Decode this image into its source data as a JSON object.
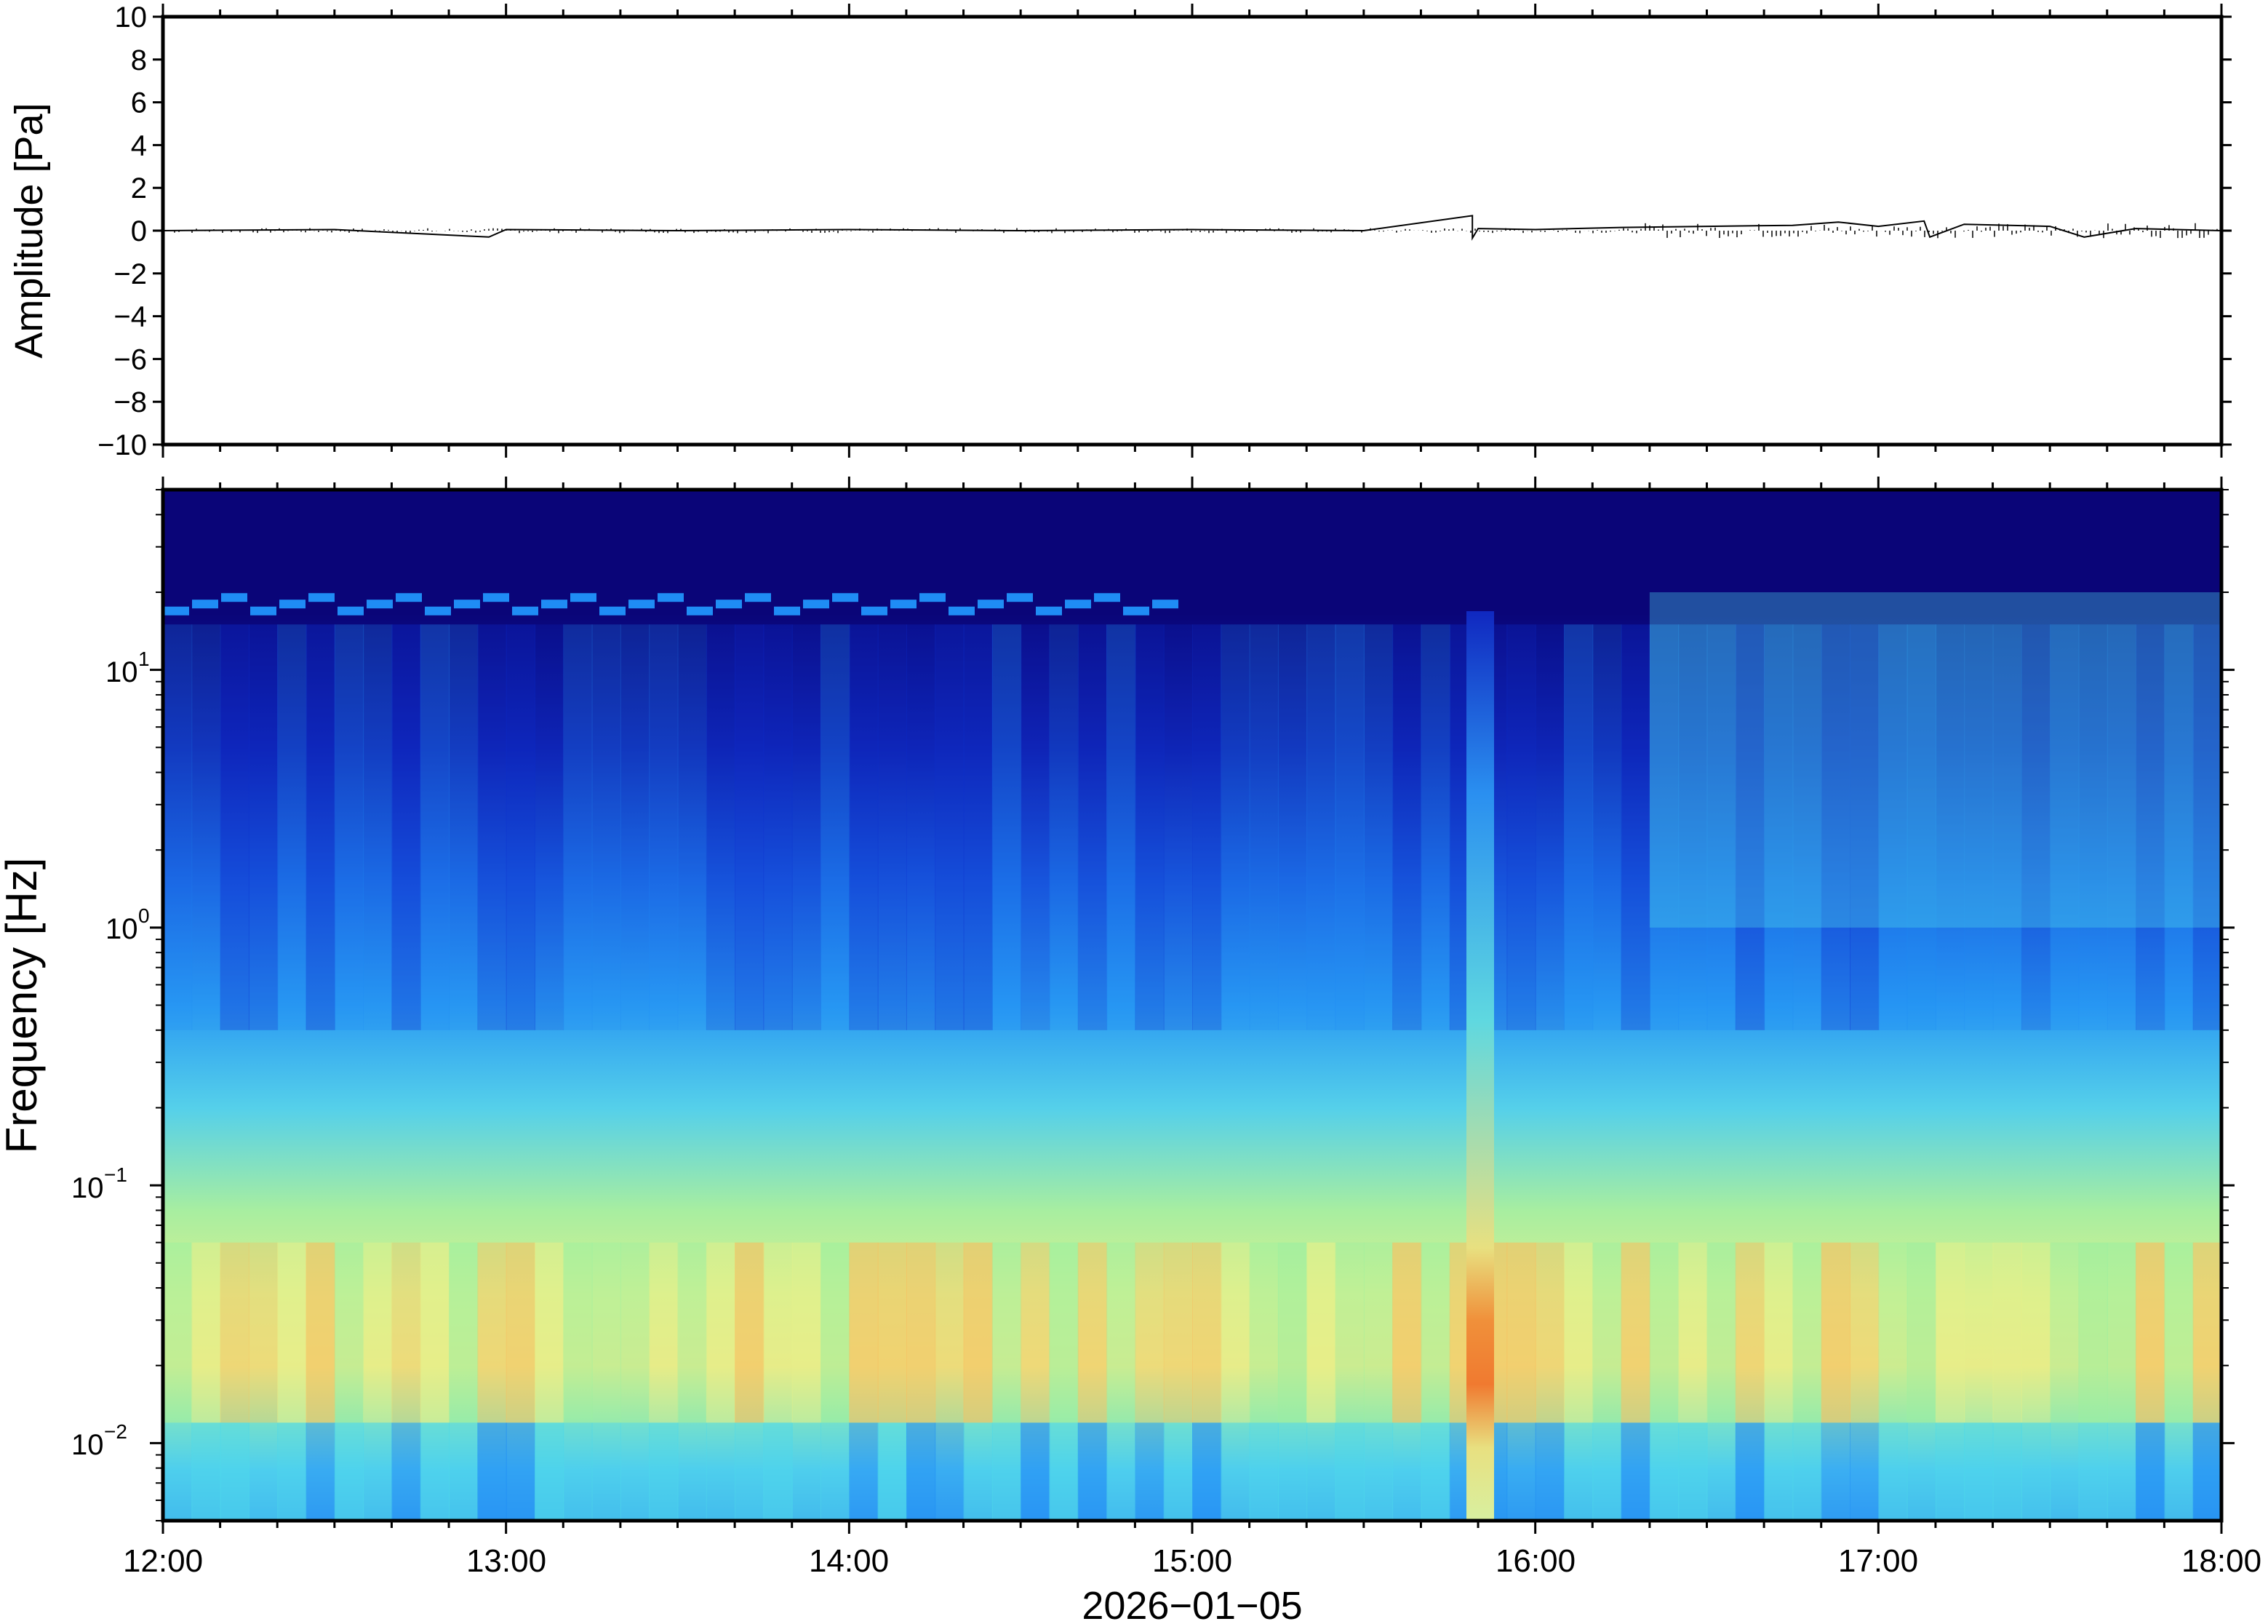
{
  "chart_data": [
    {
      "type": "line",
      "title": "",
      "ylabel": "Amplitude [Pa]",
      "xlabel": "",
      "ylim": [
        -10,
        10
      ],
      "yticks": [
        10,
        8,
        6,
        4,
        2,
        0,
        -2,
        -4,
        -6,
        -8,
        -10
      ],
      "ytick_labels": [
        "10",
        "8",
        "6",
        "4",
        "2",
        "0",
        "−2",
        "−4",
        "−6",
        "−8",
        "−10"
      ],
      "xlim": [
        "12:00",
        "18:00"
      ],
      "series": [
        {
          "x": [
            "12:00",
            "12:30",
            "12:57",
            "13:00",
            "13:30",
            "14:00",
            "14:30",
            "15:00",
            "15:30",
            "15:49",
            "15:49",
            "15:50",
            "16:00",
            "16:15",
            "16:30",
            "16:45",
            "16:53",
            "17:00",
            "17:08",
            "17:09",
            "17:15",
            "17:30",
            "17:36",
            "17:45",
            "18:00"
          ],
          "values": [
            0,
            0.05,
            -0.3,
            0.05,
            0,
            0.05,
            0,
            0.05,
            0,
            0.7,
            -0.35,
            0.1,
            0.05,
            0.15,
            0.2,
            0.25,
            0.4,
            0.2,
            0.45,
            -0.3,
            0.3,
            0.2,
            -0.3,
            0.1,
            0
          ]
        }
      ]
    },
    {
      "type": "heatmap",
      "title": "",
      "ylabel": "Frequency [Hz]",
      "xlabel": "2026−01−05",
      "yscale": "log",
      "ylim": [
        0.005,
        50
      ],
      "ytick_labels": [
        {
          "base": "10",
          "exp": "1",
          "value": 10
        },
        {
          "base": "10",
          "exp": "0",
          "value": 1
        },
        {
          "base": "10",
          "exp": "−1",
          "value": 0.1
        },
        {
          "base": "10",
          "exp": "−2",
          "value": 0.01
        }
      ],
      "x_tick_labels": [
        "12:00",
        "13:00",
        "14:00",
        "15:00",
        "16:00",
        "17:00",
        "18:00"
      ],
      "xlim": [
        "12:00",
        "18:00"
      ],
      "colormap": [
        "#0a0578",
        "#0d2fd0",
        "#1f8cf5",
        "#4ed9ea",
        "#9bf0a0",
        "#e6f08a",
        "#f7c060",
        "#f08a3a"
      ],
      "features": [
        {
          "label": "tonal line ~18 Hz",
          "x_range": [
            "12:00",
            "14:55"
          ],
          "freq": 18
        },
        {
          "label": "broadband event",
          "x_range": [
            "15:46",
            "15:51"
          ],
          "freq_range": [
            0.005,
            15
          ]
        },
        {
          "label": "elevated microbarom band",
          "freq_range": [
            0.015,
            0.06
          ]
        }
      ]
    }
  ]
}
